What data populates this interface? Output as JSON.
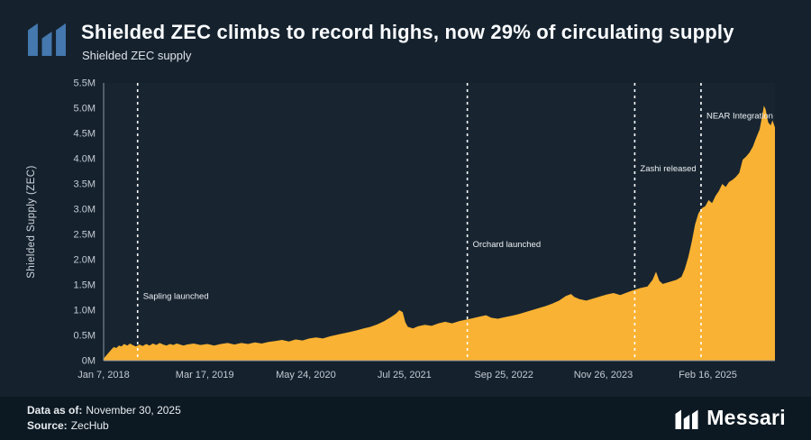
{
  "page": {
    "bg": "#15222E",
    "footer_bg": "#0C1923",
    "logo_blue": "#4478AE",
    "accent_yellow": "#F9B233"
  },
  "header": {
    "title": "Shielded ZEC climbs to record highs, now 29% of circulating supply",
    "subtitle": "Shielded ZEC supply"
  },
  "footer": {
    "data_as_of_label": "Data as of:",
    "data_as_of_value": "November 30, 2025",
    "source_label": "Source:",
    "source_value": "ZecHub",
    "brand": "Messari"
  },
  "chart_data": {
    "type": "area",
    "title": "Shielded ZEC supply",
    "ylabel": "Shielded Supply (ZEC)",
    "x_range": [
      2018.02,
      2025.92
    ],
    "ylim": [
      0,
      5.5
    ],
    "grid": false,
    "annotation_color": "#FFFFFF",
    "y_ticks": [
      {
        "value": 0.0,
        "label": "0M"
      },
      {
        "value": 0.5,
        "label": "0.5M"
      },
      {
        "value": 1.0,
        "label": "1.0M"
      },
      {
        "value": 1.5,
        "label": "1.5M"
      },
      {
        "value": 2.0,
        "label": "2.0M"
      },
      {
        "value": 2.5,
        "label": "2.5M"
      },
      {
        "value": 3.0,
        "label": "3.0M"
      },
      {
        "value": 3.5,
        "label": "3.5M"
      },
      {
        "value": 4.0,
        "label": "4.0M"
      },
      {
        "value": 4.5,
        "label": "4.5M"
      },
      {
        "value": 5.0,
        "label": "5.0M"
      },
      {
        "value": 5.5,
        "label": "5.5M"
      }
    ],
    "x_ticks": [
      {
        "year": 2018.02,
        "label": "Jan 7, 2018"
      },
      {
        "year": 2019.21,
        "label": "Mar 17, 2019"
      },
      {
        "year": 2020.4,
        "label": "May 24, 2020"
      },
      {
        "year": 2021.56,
        "label": "Jul 25, 2021"
      },
      {
        "year": 2022.73,
        "label": "Sep 25, 2022"
      },
      {
        "year": 2023.9,
        "label": "Nov 26, 2023"
      },
      {
        "year": 2025.13,
        "label": "Feb 16, 2025"
      }
    ],
    "annotations": [
      {
        "year": 2018.42,
        "label": "Sapling launched",
        "label_y": 1.28
      },
      {
        "year": 2022.3,
        "label": "Orchard launched",
        "label_y": 2.3
      },
      {
        "year": 2024.27,
        "label": "Zashi released",
        "label_y": 3.8
      },
      {
        "year": 2025.05,
        "label": "NEAR Integration",
        "label_y": 4.85
      }
    ],
    "series": [
      {
        "name": "Shielded ZEC supply (millions)",
        "color": "#F9B233",
        "points": [
          [
            2018.02,
            0.04
          ],
          [
            2018.05,
            0.1
          ],
          [
            2018.08,
            0.16
          ],
          [
            2018.11,
            0.22
          ],
          [
            2018.14,
            0.27
          ],
          [
            2018.17,
            0.25
          ],
          [
            2018.2,
            0.3
          ],
          [
            2018.23,
            0.28
          ],
          [
            2018.26,
            0.33
          ],
          [
            2018.3,
            0.3
          ],
          [
            2018.33,
            0.34
          ],
          [
            2018.36,
            0.31
          ],
          [
            2018.4,
            0.28
          ],
          [
            2018.44,
            0.32
          ],
          [
            2018.48,
            0.29
          ],
          [
            2018.52,
            0.33
          ],
          [
            2018.56,
            0.3
          ],
          [
            2018.6,
            0.34
          ],
          [
            2018.64,
            0.31
          ],
          [
            2018.68,
            0.35
          ],
          [
            2018.72,
            0.32
          ],
          [
            2018.76,
            0.3
          ],
          [
            2018.8,
            0.33
          ],
          [
            2018.84,
            0.31
          ],
          [
            2018.88,
            0.34
          ],
          [
            2018.92,
            0.32
          ],
          [
            2018.96,
            0.3
          ],
          [
            2019.0,
            0.32
          ],
          [
            2019.08,
            0.34
          ],
          [
            2019.16,
            0.31
          ],
          [
            2019.24,
            0.33
          ],
          [
            2019.32,
            0.3
          ],
          [
            2019.4,
            0.33
          ],
          [
            2019.48,
            0.35
          ],
          [
            2019.56,
            0.32
          ],
          [
            2019.64,
            0.35
          ],
          [
            2019.72,
            0.33
          ],
          [
            2019.8,
            0.36
          ],
          [
            2019.88,
            0.34
          ],
          [
            2019.96,
            0.37
          ],
          [
            2020.04,
            0.39
          ],
          [
            2020.12,
            0.41
          ],
          [
            2020.2,
            0.38
          ],
          [
            2020.28,
            0.42
          ],
          [
            2020.36,
            0.4
          ],
          [
            2020.44,
            0.44
          ],
          [
            2020.52,
            0.46
          ],
          [
            2020.6,
            0.44
          ],
          [
            2020.68,
            0.48
          ],
          [
            2020.76,
            0.51
          ],
          [
            2020.84,
            0.54
          ],
          [
            2020.92,
            0.57
          ],
          [
            2021.0,
            0.6
          ],
          [
            2021.08,
            0.64
          ],
          [
            2021.16,
            0.67
          ],
          [
            2021.24,
            0.72
          ],
          [
            2021.32,
            0.78
          ],
          [
            2021.4,
            0.86
          ],
          [
            2021.46,
            0.93
          ],
          [
            2021.5,
            1.0
          ],
          [
            2021.54,
            0.96
          ],
          [
            2021.57,
            0.76
          ],
          [
            2021.6,
            0.67
          ],
          [
            2021.66,
            0.64
          ],
          [
            2021.72,
            0.68
          ],
          [
            2021.8,
            0.71
          ],
          [
            2021.88,
            0.69
          ],
          [
            2021.96,
            0.74
          ],
          [
            2022.04,
            0.77
          ],
          [
            2022.12,
            0.74
          ],
          [
            2022.2,
            0.78
          ],
          [
            2022.28,
            0.81
          ],
          [
            2022.36,
            0.84
          ],
          [
            2022.44,
            0.87
          ],
          [
            2022.52,
            0.9
          ],
          [
            2022.58,
            0.85
          ],
          [
            2022.66,
            0.83
          ],
          [
            2022.74,
            0.86
          ],
          [
            2022.82,
            0.89
          ],
          [
            2022.9,
            0.92
          ],
          [
            2022.98,
            0.96
          ],
          [
            2023.06,
            1.0
          ],
          [
            2023.14,
            1.04
          ],
          [
            2023.22,
            1.08
          ],
          [
            2023.3,
            1.13
          ],
          [
            2023.38,
            1.19
          ],
          [
            2023.46,
            1.28
          ],
          [
            2023.52,
            1.32
          ],
          [
            2023.56,
            1.26
          ],
          [
            2023.62,
            1.22
          ],
          [
            2023.7,
            1.19
          ],
          [
            2023.78,
            1.23
          ],
          [
            2023.86,
            1.27
          ],
          [
            2023.94,
            1.31
          ],
          [
            2024.02,
            1.34
          ],
          [
            2024.1,
            1.3
          ],
          [
            2024.18,
            1.35
          ],
          [
            2024.26,
            1.4
          ],
          [
            2024.34,
            1.44
          ],
          [
            2024.42,
            1.47
          ],
          [
            2024.48,
            1.6
          ],
          [
            2024.52,
            1.76
          ],
          [
            2024.56,
            1.58
          ],
          [
            2024.6,
            1.52
          ],
          [
            2024.68,
            1.56
          ],
          [
            2024.76,
            1.6
          ],
          [
            2024.82,
            1.66
          ],
          [
            2024.86,
            1.82
          ],
          [
            2024.9,
            2.05
          ],
          [
            2024.94,
            2.35
          ],
          [
            2024.98,
            2.7
          ],
          [
            2025.02,
            2.92
          ],
          [
            2025.06,
            3.02
          ],
          [
            2025.1,
            3.06
          ],
          [
            2025.14,
            3.18
          ],
          [
            2025.18,
            3.12
          ],
          [
            2025.22,
            3.26
          ],
          [
            2025.26,
            3.36
          ],
          [
            2025.3,
            3.5
          ],
          [
            2025.34,
            3.44
          ],
          [
            2025.38,
            3.54
          ],
          [
            2025.42,
            3.58
          ],
          [
            2025.46,
            3.64
          ],
          [
            2025.5,
            3.72
          ],
          [
            2025.54,
            3.98
          ],
          [
            2025.58,
            4.04
          ],
          [
            2025.62,
            4.12
          ],
          [
            2025.66,
            4.24
          ],
          [
            2025.7,
            4.42
          ],
          [
            2025.74,
            4.58
          ],
          [
            2025.77,
            4.85
          ],
          [
            2025.79,
            5.05
          ],
          [
            2025.81,
            4.98
          ],
          [
            2025.84,
            4.72
          ],
          [
            2025.87,
            4.66
          ],
          [
            2025.89,
            4.76
          ],
          [
            2025.92,
            4.62
          ]
        ]
      }
    ]
  }
}
